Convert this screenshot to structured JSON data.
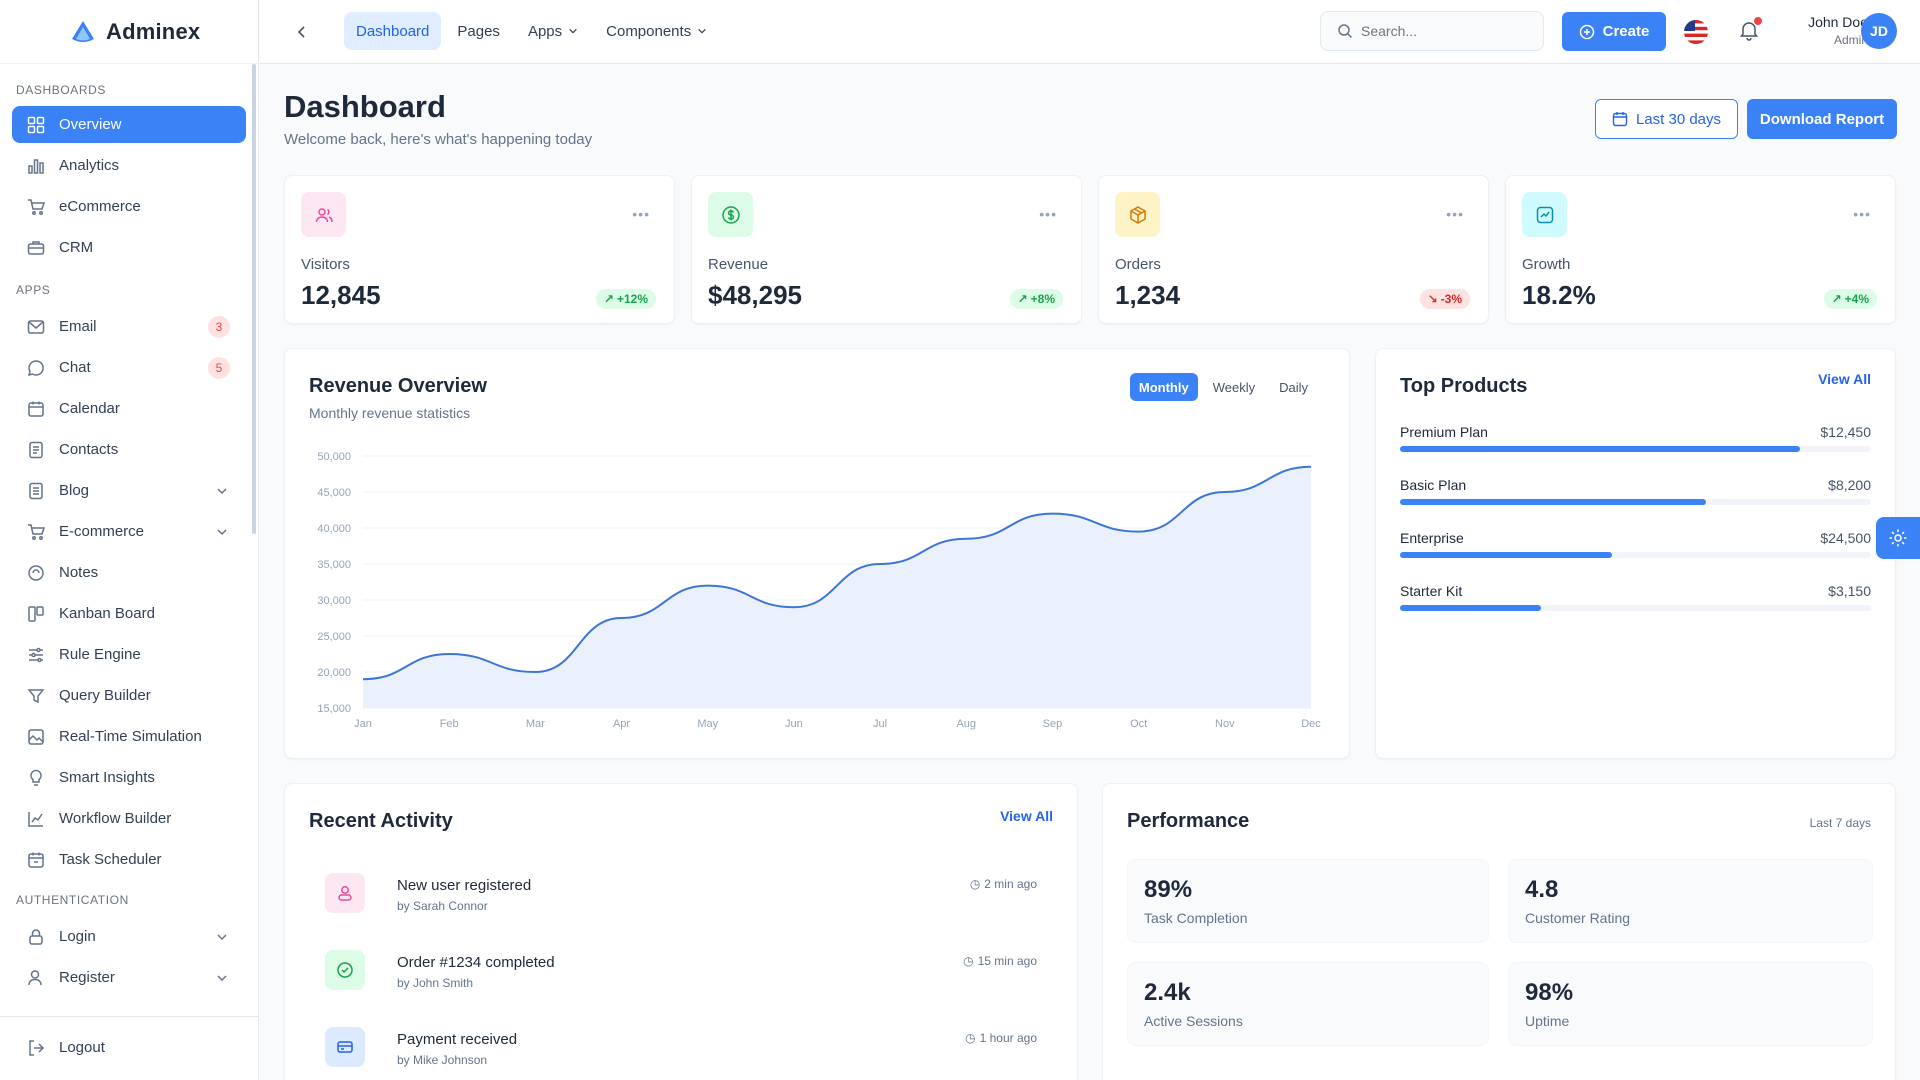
{
  "brand": {
    "name": "Adminex"
  },
  "sidebar": {
    "sections": [
      {
        "title": "Dashboards",
        "items": [
          {
            "label": "Overview",
            "icon": "grid-icon",
            "active": true
          },
          {
            "label": "Analytics",
            "icon": "bar-chart-icon"
          },
          {
            "label": "eCommerce",
            "icon": "cart-icon"
          },
          {
            "label": "CRM",
            "icon": "briefcase-icon"
          }
        ]
      },
      {
        "title": "Apps",
        "items": [
          {
            "label": "Email",
            "icon": "mail-icon",
            "badge": "3"
          },
          {
            "label": "Chat",
            "icon": "chat-icon",
            "badge": "5"
          },
          {
            "label": "Calendar",
            "icon": "calendar-icon"
          },
          {
            "label": "Contacts",
            "icon": "contacts-icon"
          },
          {
            "label": "Blog",
            "icon": "document-icon",
            "expandable": true
          },
          {
            "label": "E-commerce",
            "icon": "cart-icon",
            "expandable": true
          },
          {
            "label": "Notes",
            "icon": "notes-icon"
          },
          {
            "label": "Kanban Board",
            "icon": "kanban-icon"
          },
          {
            "label": "Rule Engine",
            "icon": "sliders-icon"
          },
          {
            "label": "Query Builder",
            "icon": "filter-icon"
          },
          {
            "label": "Real-Time Simulation",
            "icon": "image-icon"
          },
          {
            "label": "Smart Insights",
            "icon": "lightbulb-icon"
          },
          {
            "label": "Workflow Builder",
            "icon": "line-chart-icon"
          },
          {
            "label": "Task Scheduler",
            "icon": "calendar-clock-icon"
          }
        ]
      },
      {
        "title": "Authentication",
        "items": [
          {
            "label": "Login",
            "icon": "lock-icon",
            "expandable": true
          },
          {
            "label": "Register",
            "icon": "user-plus-icon",
            "expandable": true
          }
        ]
      }
    ],
    "logout": "Logout"
  },
  "topbar": {
    "nav": [
      {
        "label": "Dashboard",
        "active": true
      },
      {
        "label": "Pages"
      },
      {
        "label": "Apps",
        "dropdown": true
      },
      {
        "label": "Components",
        "dropdown": true
      }
    ],
    "search_placeholder": "Search...",
    "create_label": "Create",
    "user": {
      "name": "John Doe",
      "role": "Admin",
      "initials": "JD"
    }
  },
  "page": {
    "title": "Dashboard",
    "subtitle": "Welcome back, here's what's happening today",
    "range_label": "Last 30 days",
    "download_label": "Download Report"
  },
  "stats": [
    {
      "label": "Visitors",
      "value": "12,845",
      "change": "+12%",
      "trend": "up",
      "icon": "users-icon",
      "color": "#ec4899",
      "bg": "#fce7f3"
    },
    {
      "label": "Revenue",
      "value": "$48,295",
      "change": "+8%",
      "trend": "up",
      "icon": "dollar-icon",
      "color": "#16a34a",
      "bg": "#dcfce7"
    },
    {
      "label": "Orders",
      "value": "1,234",
      "change": "-3%",
      "trend": "down",
      "icon": "box-icon",
      "color": "#d97706",
      "bg": "#fef3c7"
    },
    {
      "label": "Growth",
      "value": "18.2%",
      "change": "+4%",
      "trend": "up",
      "icon": "trend-icon",
      "color": "#0891b2",
      "bg": "#cffafe"
    }
  ],
  "revenue": {
    "title": "Revenue Overview",
    "subtitle": "Monthly revenue statistics",
    "tabs": [
      "Monthly",
      "Weekly",
      "Daily"
    ],
    "active_tab": "Monthly"
  },
  "chart_data": {
    "type": "area",
    "x": [
      "Jan",
      "Feb",
      "Mar",
      "Apr",
      "May",
      "Jun",
      "Jul",
      "Aug",
      "Sep",
      "Oct",
      "Nov",
      "Dec"
    ],
    "series": [
      {
        "values": [
          19000,
          22500,
          20000,
          27500,
          32000,
          29000,
          35000,
          38500,
          42000,
          39500,
          45000,
          48500
        ]
      }
    ],
    "y_ticks": [
      "50,000",
      "45,000",
      "40,000",
      "35,000",
      "30,000",
      "25,000",
      "20,000",
      "15,000"
    ],
    "ylim": [
      15000,
      50000
    ],
    "grid": true,
    "colors": {
      "line": "#3b76d6",
      "fill": "#e8effc"
    }
  },
  "top_products": {
    "title": "Top Products",
    "view_all": "View All",
    "items": [
      {
        "name": "Premium Plan",
        "value": "$12,450",
        "progress": 0.85
      },
      {
        "name": "Basic Plan",
        "value": "$8,200",
        "progress": 0.65
      },
      {
        "name": "Enterprise",
        "value": "$24,500",
        "progress": 0.45
      },
      {
        "name": "Starter Kit",
        "value": "$3,150",
        "progress": 0.3
      }
    ]
  },
  "activity": {
    "title": "Recent Activity",
    "view_all": "View All",
    "items": [
      {
        "title": "New user registered",
        "by": "by Sarah Connor",
        "time": "2 min ago",
        "icon": "user-icon",
        "color": "#ec4899",
        "bg": "#fce7f3"
      },
      {
        "title": "Order #1234 completed",
        "by": "by John Smith",
        "time": "15 min ago",
        "icon": "check-circle-icon",
        "color": "#16a34a",
        "bg": "#dcfce7"
      },
      {
        "title": "Payment received",
        "by": "by Mike Johnson",
        "time": "1 hour ago",
        "icon": "credit-card-icon",
        "color": "#2563eb",
        "bg": "#dbeafe"
      }
    ]
  },
  "performance": {
    "title": "Performance",
    "range": "Last 7 days",
    "metrics": [
      {
        "value": "89%",
        "label": "Task Completion"
      },
      {
        "value": "4.8",
        "label": "Customer Rating"
      },
      {
        "value": "2.4k",
        "label": "Active Sessions"
      },
      {
        "value": "98%",
        "label": "Uptime"
      }
    ]
  },
  "colors": {
    "primary": "#3b82f6",
    "badge_red": "#ef4444"
  }
}
